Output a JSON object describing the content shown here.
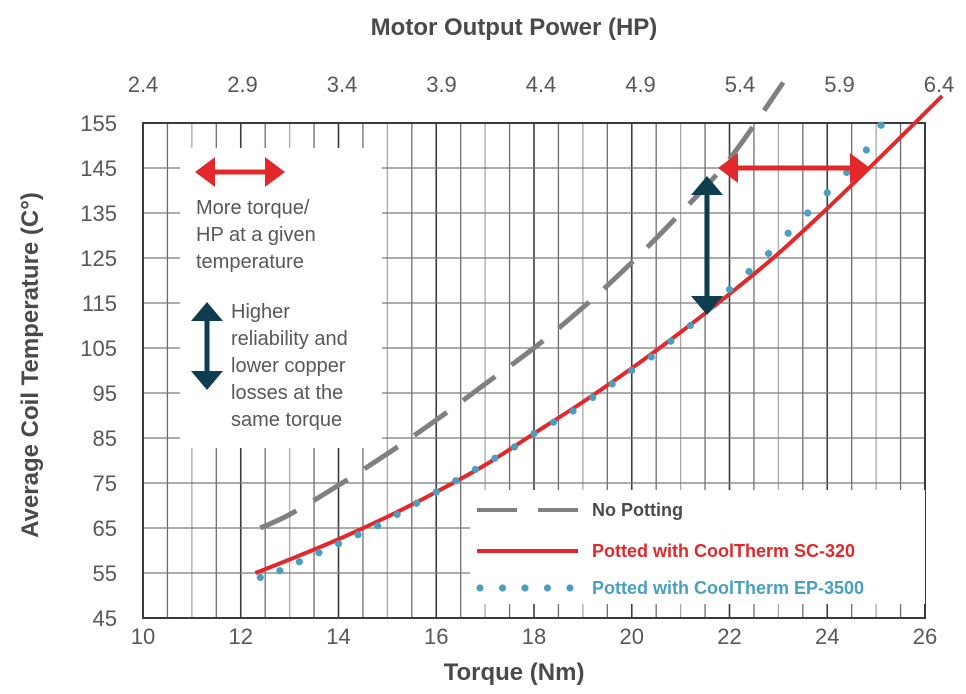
{
  "chart_data": {
    "type": "line",
    "title": "",
    "top_axis": {
      "label": "Motor Output Power (HP)",
      "ticks": [
        "2.4",
        "2.9",
        "3.4",
        "3.9",
        "4.4",
        "4.9",
        "5.4",
        "5.9",
        "6.4"
      ]
    },
    "xlabel": "Torque (Nm)",
    "ylabel": "Average Coil Temperature (C°)",
    "xlim": [
      10,
      26
    ],
    "ylim": [
      45,
      155
    ],
    "x_ticks": [
      "10",
      "12",
      "14",
      "16",
      "18",
      "20",
      "22",
      "24",
      "26"
    ],
    "y_ticks": [
      "155",
      "145",
      "135",
      "125",
      "115",
      "105",
      "95",
      "85",
      "75",
      "65",
      "55",
      "45"
    ],
    "grid": true,
    "legend_position": "lower right",
    "series": [
      {
        "name": "No Potting",
        "style": "dashed",
        "color": "#808082",
        "x": [
          12.4,
          13.0,
          14.0,
          15.0,
          16.0,
          17.0,
          18.0,
          19.0,
          20.0,
          21.0,
          22.0,
          23.1
        ],
        "y": [
          65,
          68,
          74.5,
          81.5,
          89,
          97,
          105,
          114,
          124,
          135,
          147,
          164
        ]
      },
      {
        "name": "Potted with CoolTherm SC-320",
        "style": "solid",
        "color": "#e2282a",
        "x": [
          12.3,
          13.0,
          14.0,
          15.0,
          16.0,
          17.0,
          18.0,
          19.0,
          20.0,
          21.0,
          22.0,
          23.0,
          24.0,
          25.0,
          26.35
        ],
        "y": [
          55,
          58,
          62.5,
          67.5,
          73,
          79,
          86,
          93,
          100.5,
          108.5,
          117,
          126,
          136,
          146.5,
          161
        ]
      },
      {
        "name": "Potted with CoolTherm EP-3500",
        "style": "dotted",
        "color": "#4a9fc0",
        "x": [
          12.4,
          12.8,
          13.2,
          13.6,
          14.0,
          14.4,
          14.8,
          15.2,
          15.6,
          16.0,
          16.4,
          16.8,
          17.2,
          17.6,
          18.0,
          18.4,
          18.8,
          19.2,
          19.6,
          20.0,
          20.4,
          20.8,
          21.2,
          21.6,
          22.0,
          22.4,
          22.8,
          23.2,
          23.6,
          24.0,
          24.4,
          24.8,
          25.1
        ],
        "y": [
          54,
          55.5,
          57.5,
          59.5,
          61.5,
          63.5,
          65.5,
          68,
          70.5,
          73,
          75.5,
          78,
          80.5,
          83,
          86,
          88.5,
          91,
          94,
          97,
          100,
          103,
          106.5,
          110,
          114,
          118,
          122,
          126,
          130.5,
          135,
          139.5,
          144,
          149,
          154.5
        ]
      }
    ],
    "annotations": [
      {
        "type": "double-arrow-horizontal",
        "color": "#e2282a",
        "from": [
          21.7,
          145
        ],
        "to": [
          24.8,
          145
        ]
      },
      {
        "type": "double-arrow-vertical",
        "color": "#0f3d50",
        "from": [
          21.4,
          112
        ],
        "to": [
          21.4,
          144
        ]
      }
    ]
  },
  "legend_box": {
    "horizontal_arrow_note": [
      "More torque/",
      "HP at a given",
      "temperature"
    ],
    "vertical_arrow_note": [
      "Higher",
      "reliability and",
      "lower copper",
      "losses at the",
      "same torque"
    ]
  },
  "colors": {
    "text": "#58585a",
    "title": "#4a4a4c",
    "red": "#e2282a",
    "gray": "#808082",
    "blue": "#4a9fc0",
    "navy": "#0f3d50"
  }
}
